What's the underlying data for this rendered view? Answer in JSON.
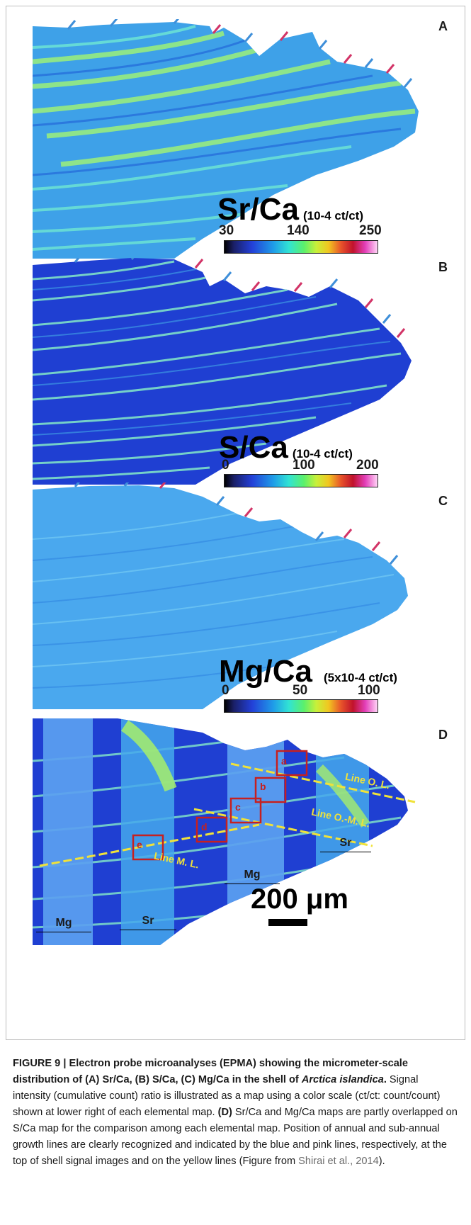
{
  "panels": [
    {
      "label": "A",
      "ratio": "Sr/Ca",
      "unit": "(10-4 ct/ct)",
      "scale": [
        "30",
        "140",
        "250"
      ]
    },
    {
      "label": "B",
      "ratio": "S/Ca",
      "unit": "(10-4 ct/ct)",
      "scale": [
        "0",
        "100",
        "200"
      ]
    },
    {
      "label": "C",
      "ratio": "Mg/Ca",
      "unit": "(5x10-4 ct/ct)",
      "scale": [
        "0",
        "50",
        "100"
      ]
    },
    {
      "label": "D"
    }
  ],
  "panel_d": {
    "lines": [
      "Line O. L.",
      "Line O.-M. L.",
      "Line M. L."
    ],
    "boxes": [
      "a",
      "b",
      "c",
      "d",
      "e"
    ],
    "segments": [
      "Mg",
      "Sr",
      "Mg",
      "Sr"
    ],
    "scalebar": "200 μm"
  },
  "colors": {
    "map_background": "#1f3fd2",
    "map_band": "#7fe0c8",
    "annual_line": "#3f8fd9",
    "subannual_line": "#d23467",
    "growth_line_yellow": "#f0e23a",
    "box_red": "#c62020"
  },
  "caption": {
    "title_part1": "FIGURE 9 | Electron probe microanalyses (EPMA) showing the micrometer-scale distribution of (A) Sr/Ca, (B) S/Ca, (C) Mg/Ca in the shell of ",
    "species": "Arctica islandica",
    "title_end": ".",
    "text1": " Signal intensity (cumulative count) ratio is illustrated as a map using a color scale (ct/ct: count/count) shown at lower right of each elemental map. ",
    "d_label": "(D)",
    "text2": " Sr/Ca and Mg/Ca maps are partly overlapped on S/Ca map for the comparison among each elemental map. Position of annual and sub-annual growth lines are clearly recognized and indicated by the blue and pink lines, respectively, at the top of shell signal images and on the yellow lines (Figure from ",
    "citation": "Shirai et al., 2014",
    "text3": ")."
  }
}
